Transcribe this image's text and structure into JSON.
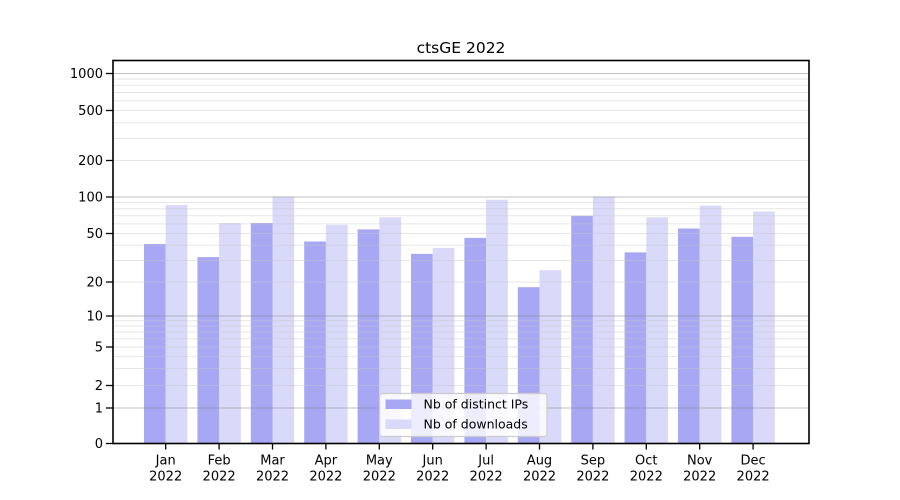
{
  "chart_data": {
    "type": "bar",
    "title": "ctsGE 2022",
    "categories": [
      "Jan",
      "Feb",
      "Mar",
      "Apr",
      "May",
      "Jun",
      "Jul",
      "Aug",
      "Sep",
      "Oct",
      "Nov",
      "Dec"
    ],
    "category_year_line": "2022",
    "series": [
      {
        "name": "Nb of distinct IPs",
        "color": "#a7a7f4",
        "values": [
          41,
          32,
          61,
          43,
          54,
          34,
          46,
          18,
          70,
          35,
          55,
          47
        ]
      },
      {
        "name": "Nb of downloads",
        "color": "#d9d9f9",
        "values": [
          86,
          61,
          101,
          59,
          68,
          38,
          95,
          25,
          101,
          68,
          85,
          76
        ]
      }
    ],
    "y_ticks": [
      0,
      1,
      2,
      5,
      10,
      20,
      50,
      100,
      200,
      500,
      1000
    ],
    "yscale": "log-like with 0 baseline",
    "ylim": [
      0,
      1100
    ],
    "grid": true,
    "legend_position": "lower center",
    "xlabel": "",
    "ylabel": ""
  }
}
